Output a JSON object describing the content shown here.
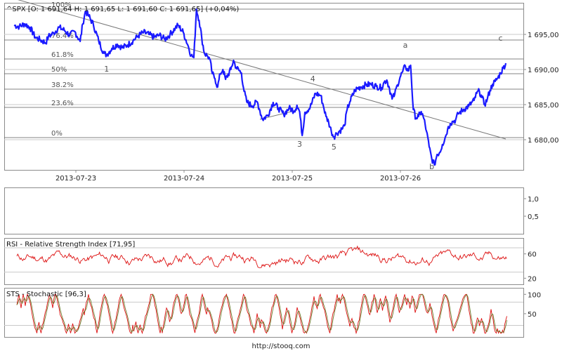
{
  "footer": {
    "url": "http://stooq.com"
  },
  "colors": {
    "price": "#1a1aff",
    "osc": "#dd1111",
    "stoch_d": "#6b7a2a",
    "frame": "#8c8c8c"
  },
  "chart_data": [
    {
      "type": "line",
      "panel": "price",
      "title": "^SPX [O: 1 691,64  H: 1 691,65  L: 1 691,60  C: 1 691,65] (+0,04%)",
      "x_tick_labels": [
        "2013-07-23",
        "2013-07-24",
        "2013-07-25",
        "2013-07-26"
      ],
      "y_tick_labels": [
        "1 695,00",
        "1 690,00",
        "1 685,00",
        "1 680,00"
      ],
      "ylim": [
        1675.7,
        1699.4
      ],
      "grid": true,
      "series": [
        {
          "key": "price",
          "points": [
            [
              0,
              1696.3
            ],
            [
              2,
              1696.1
            ],
            [
              4,
              1696.5
            ],
            [
              6,
              1696.0
            ],
            [
              8,
              1694.6
            ],
            [
              10,
              1694.2
            ],
            [
              12,
              1693.8
            ],
            [
              13,
              1694.7
            ],
            [
              15,
              1695.2
            ],
            [
              17,
              1696.0
            ],
            [
              19,
              1695.6
            ],
            [
              21,
              1694.9
            ],
            [
              23,
              1695.4
            ],
            [
              25,
              1694.0
            ],
            [
              26,
              1696.5
            ],
            [
              27,
              1698.3
            ],
            [
              28,
              1697.8
            ],
            [
              30,
              1696.4
            ],
            [
              32,
              1694.1
            ],
            [
              34,
              1692.3
            ],
            [
              35,
              1692.1
            ],
            [
              37,
              1693.0
            ],
            [
              39,
              1693.6
            ],
            [
              41,
              1693.1
            ],
            [
              43,
              1693.5
            ],
            [
              45,
              1694.1
            ],
            [
              47,
              1694.8
            ],
            [
              49,
              1695.3
            ],
            [
              51,
              1695.0
            ],
            [
              53,
              1694.6
            ],
            [
              55,
              1694.9
            ],
            [
              57,
              1694.3
            ],
            [
              59,
              1695.0
            ],
            [
              61,
              1695.9
            ],
            [
              62,
              1696.3
            ],
            [
              64,
              1695.3
            ],
            [
              66,
              1693.2
            ],
            [
              67,
              1692.0
            ],
            [
              68,
              1691.7
            ],
            [
              69,
              1698.6
            ],
            [
              70,
              1697.0
            ],
            [
              71,
              1694.5
            ],
            [
              72,
              1692.3
            ],
            [
              73,
              1692.0
            ],
            [
              74,
              1691.5
            ],
            [
              75,
              1689.4
            ],
            [
              76,
              1688.7
            ],
            [
              77,
              1687.5
            ],
            [
              78,
              1689.4
            ],
            [
              79,
              1690.0
            ],
            [
              80,
              1688.6
            ],
            [
              82,
              1690.0
            ],
            [
              83,
              1691.3
            ],
            [
              84,
              1690.3
            ],
            [
              86,
              1689.5
            ],
            [
              87,
              1686.9
            ],
            [
              88,
              1685.4
            ],
            [
              90,
              1684.8
            ],
            [
              92,
              1685.4
            ],
            [
              93,
              1684.1
            ],
            [
              94,
              1682.9
            ],
            [
              96,
              1683.5
            ],
            [
              98,
              1685.3
            ],
            [
              100,
              1684.5
            ],
            [
              102,
              1683.6
            ],
            [
              104,
              1684.5
            ],
            [
              106,
              1684.1
            ],
            [
              107,
              1684.9
            ],
            [
              108,
              1684.0
            ],
            [
              109,
              1680.6
            ],
            [
              110,
              1683.9
            ],
            [
              112,
              1684.6
            ],
            [
              114,
              1686.6
            ],
            [
              116,
              1686.3
            ],
            [
              117,
              1684.8
            ],
            [
              118,
              1683.3
            ],
            [
              119,
              1682.5
            ],
            [
              120,
              1681.2
            ],
            [
              121,
              1680.4
            ],
            [
              122,
              1680.9
            ],
            [
              124,
              1681.5
            ],
            [
              125,
              1682.0
            ],
            [
              126,
              1684.3
            ],
            [
              127,
              1685.4
            ],
            [
              129,
              1687.1
            ],
            [
              131,
              1687.5
            ],
            [
              133,
              1687.8
            ],
            [
              135,
              1687.9
            ],
            [
              137,
              1687.6
            ],
            [
              139,
              1687.4
            ],
            [
              140,
              1688.2
            ],
            [
              141,
              1688.5
            ],
            [
              142,
              1687.3
            ],
            [
              143,
              1685.8
            ],
            [
              144,
              1686.5
            ],
            [
              145,
              1687.8
            ],
            [
              146,
              1688.9
            ],
            [
              147,
              1689.7
            ],
            [
              148,
              1690.5
            ],
            [
              149,
              1689.8
            ],
            [
              150,
              1690.6
            ],
            [
              151,
              1684.3
            ],
            [
              152,
              1683.1
            ],
            [
              153,
              1683.3
            ],
            [
              154,
              1684.0
            ],
            [
              155,
              1683.0
            ],
            [
              156,
              1681.2
            ],
            [
              157,
              1679.0
            ],
            [
              158,
              1677.3
            ],
            [
              159,
              1676.4
            ],
            [
              160,
              1677.9
            ],
            [
              161,
              1678.2
            ],
            [
              162,
              1679.3
            ],
            [
              163,
              1680.2
            ],
            [
              164,
              1681.5
            ],
            [
              165,
              1682.3
            ],
            [
              166,
              1682.6
            ],
            [
              167,
              1682.8
            ],
            [
              168,
              1683.7
            ],
            [
              170,
              1684.3
            ],
            [
              172,
              1684.8
            ],
            [
              174,
              1685.6
            ],
            [
              175,
              1686.6
            ],
            [
              176,
              1686.9
            ],
            [
              177,
              1686.0
            ],
            [
              178,
              1685.0
            ],
            [
              179,
              1685.8
            ],
            [
              180,
              1687.0
            ],
            [
              181,
              1687.9
            ],
            [
              182,
              1688.3
            ],
            [
              183,
              1688.8
            ],
            [
              184,
              1689.5
            ],
            [
              185,
              1690.2
            ],
            [
              186,
              1690.9
            ]
          ]
        }
      ],
      "fibonacci": [
        {
          "label": "0%",
          "value": 1680.3
        },
        {
          "label": "23.6%",
          "value": 1684.6
        },
        {
          "label": "38.2%",
          "value": 1687.2
        },
        {
          "label": "50%",
          "value": 1689.4
        },
        {
          "label": "61.8%",
          "value": 1691.5
        },
        {
          "label": "76.4%",
          "value": 1694.2
        },
        {
          "label": "100%",
          "value": 1698.6
        }
      ],
      "trendlines": [
        {
          "from": [
            0,
            1700.1
          ],
          "to": [
            186,
            1680.1
          ]
        },
        {
          "from": [
            93,
            1682.9
          ],
          "to": [
            107,
            1684.2
          ]
        }
      ],
      "wave_labels": [
        {
          "text": "1",
          "x": 35,
          "y": 1689.7
        },
        {
          "text": "3",
          "x": 108,
          "y": 1679.0
        },
        {
          "text": "4",
          "x": 113,
          "y": 1688.3
        },
        {
          "text": "5",
          "x": 121,
          "y": 1678.6
        },
        {
          "text": "a",
          "x": 148,
          "y": 1693.1
        },
        {
          "text": "b",
          "x": 158,
          "y": 1675.8
        },
        {
          "text": "c",
          "x": 184,
          "y": 1694.1
        }
      ]
    },
    {
      "type": "line",
      "panel": "volume",
      "title": "",
      "y_tick_labels": [
        "1,0",
        "0,5"
      ],
      "ylim": [
        0,
        1.3
      ],
      "series": []
    },
    {
      "type": "line",
      "panel": "rsi",
      "title": "RSI - Relative Strength Index [71,95]",
      "y_tick_labels": [
        "60",
        "20"
      ],
      "ylim": [
        10,
        85
      ],
      "guide_levels": [
        70,
        30
      ],
      "series": [
        {
          "key": "rsi"
        }
      ]
    },
    {
      "type": "line",
      "panel": "stochastic",
      "title": "STS - Stochastic [96,3]",
      "y_tick_labels": [
        "100",
        "50"
      ],
      "ylim": [
        -10,
        115
      ],
      "guide_levels": [
        80,
        20
      ],
      "series": [
        {
          "key": "stoch_k"
        },
        {
          "key": "stoch_d"
        }
      ]
    }
  ]
}
